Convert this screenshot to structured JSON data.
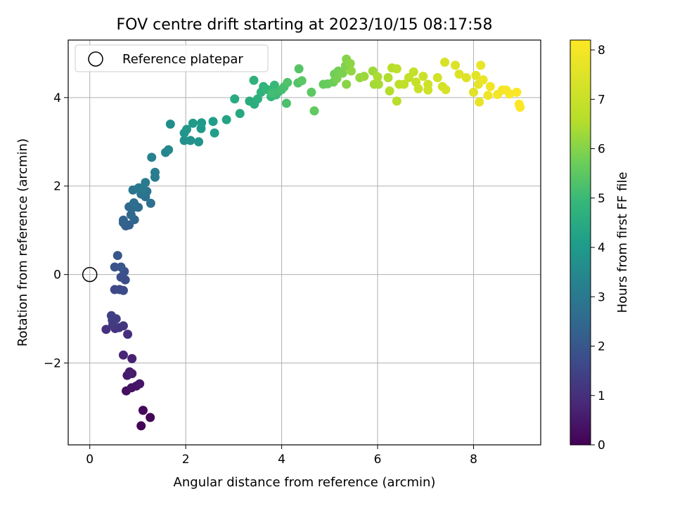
{
  "chart_data": {
    "type": "scatter",
    "title": "FOV centre drift starting at 2023/10/15 08:17:58",
    "xlabel": "Angular distance from reference (arcmin)",
    "ylabel": "Rotation from reference (arcmin)",
    "xlim": [
      -0.45,
      9.4
    ],
    "ylim": [
      -3.85,
      5.3
    ],
    "xticks": [
      0,
      2,
      4,
      6,
      8
    ],
    "yticks": [
      -2,
      0,
      2,
      4
    ],
    "xtick_labels": [
      "0",
      "2",
      "4",
      "6",
      "8"
    ],
    "ytick_labels": [
      "−2",
      "0",
      "2",
      "4"
    ],
    "grid": true,
    "legend": {
      "position": "top-left",
      "entries": [
        "Reference platepar"
      ]
    },
    "reference_point": {
      "name": "Reference platepar",
      "x": 0,
      "y": 0
    },
    "colorbar": {
      "label": "Hours from first FF file",
      "colormap": "viridis",
      "range": [
        0,
        8.2
      ],
      "ticks": [
        0,
        1,
        2,
        3,
        4,
        5,
        6,
        7,
        8
      ],
      "tick_labels": [
        "0",
        "1",
        "2",
        "3",
        "4",
        "5",
        "6",
        "7",
        "8"
      ]
    },
    "points": [
      {
        "x": 1.07,
        "y": -3.42,
        "c": 0.05
      },
      {
        "x": 1.26,
        "y": -3.23,
        "c": 0.1
      },
      {
        "x": 1.11,
        "y": -3.07,
        "c": 0.15
      },
      {
        "x": 0.76,
        "y": -2.63,
        "c": 0.3
      },
      {
        "x": 0.87,
        "y": -2.56,
        "c": 0.35
      },
      {
        "x": 0.97,
        "y": -2.52,
        "c": 0.4
      },
      {
        "x": 1.04,
        "y": -2.47,
        "c": 0.45
      },
      {
        "x": 0.78,
        "y": -2.28,
        "c": 0.5
      },
      {
        "x": 0.88,
        "y": -2.24,
        "c": 0.55
      },
      {
        "x": 0.83,
        "y": -2.2,
        "c": 0.6
      },
      {
        "x": 0.88,
        "y": -1.9,
        "c": 0.7
      },
      {
        "x": 0.7,
        "y": -1.82,
        "c": 0.8
      },
      {
        "x": 0.79,
        "y": -1.35,
        "c": 1.0
      },
      {
        "x": 0.34,
        "y": -1.24,
        "c": 1.05
      },
      {
        "x": 0.53,
        "y": -1.22,
        "c": 1.1
      },
      {
        "x": 0.61,
        "y": -1.2,
        "c": 1.15
      },
      {
        "x": 0.7,
        "y": -1.16,
        "c": 1.2
      },
      {
        "x": 0.48,
        "y": -1.13,
        "c": 1.25
      },
      {
        "x": 0.47,
        "y": -1.03,
        "c": 1.3
      },
      {
        "x": 0.55,
        "y": -1.0,
        "c": 1.35
      },
      {
        "x": 0.45,
        "y": -0.93,
        "c": 1.4
      },
      {
        "x": 0.52,
        "y": -0.34,
        "c": 1.6
      },
      {
        "x": 0.62,
        "y": -0.34,
        "c": 1.65
      },
      {
        "x": 0.7,
        "y": -0.36,
        "c": 1.7
      },
      {
        "x": 0.74,
        "y": -0.12,
        "c": 1.75
      },
      {
        "x": 0.65,
        "y": -0.06,
        "c": 1.8
      },
      {
        "x": 0.72,
        "y": 0.07,
        "c": 1.85
      },
      {
        "x": 0.52,
        "y": 0.17,
        "c": 1.9
      },
      {
        "x": 0.65,
        "y": 0.17,
        "c": 1.95
      },
      {
        "x": 0.58,
        "y": 0.43,
        "c": 2.0
      },
      {
        "x": 0.75,
        "y": 1.1,
        "c": 2.2
      },
      {
        "x": 0.82,
        "y": 1.12,
        "c": 2.25
      },
      {
        "x": 0.7,
        "y": 1.17,
        "c": 2.3
      },
      {
        "x": 0.7,
        "y": 1.23,
        "c": 2.35
      },
      {
        "x": 0.93,
        "y": 1.24,
        "c": 2.4
      },
      {
        "x": 0.86,
        "y": 1.35,
        "c": 2.45
      },
      {
        "x": 0.82,
        "y": 1.53,
        "c": 2.5
      },
      {
        "x": 0.92,
        "y": 1.52,
        "c": 2.55
      },
      {
        "x": 1.01,
        "y": 1.52,
        "c": 2.6
      },
      {
        "x": 0.92,
        "y": 1.62,
        "c": 2.65
      },
      {
        "x": 1.27,
        "y": 1.61,
        "c": 2.7
      },
      {
        "x": 1.16,
        "y": 1.76,
        "c": 2.75
      },
      {
        "x": 1.07,
        "y": 1.82,
        "c": 2.8
      },
      {
        "x": 1.19,
        "y": 1.88,
        "c": 2.85
      },
      {
        "x": 0.9,
        "y": 1.91,
        "c": 2.9
      },
      {
        "x": 1.02,
        "y": 1.96,
        "c": 2.95
      },
      {
        "x": 1.1,
        "y": 1.94,
        "c": 3.0
      },
      {
        "x": 1.16,
        "y": 2.08,
        "c": 3.05
      },
      {
        "x": 1.36,
        "y": 2.2,
        "c": 3.1
      },
      {
        "x": 1.36,
        "y": 2.31,
        "c": 3.15
      },
      {
        "x": 1.29,
        "y": 2.65,
        "c": 3.25
      },
      {
        "x": 1.58,
        "y": 2.76,
        "c": 3.4
      },
      {
        "x": 1.64,
        "y": 2.82,
        "c": 3.45
      },
      {
        "x": 1.68,
        "y": 3.4,
        "c": 3.6
      },
      {
        "x": 1.97,
        "y": 3.03,
        "c": 3.7
      },
      {
        "x": 2.1,
        "y": 3.03,
        "c": 3.75
      },
      {
        "x": 2.27,
        "y": 3.0,
        "c": 3.8
      },
      {
        "x": 1.97,
        "y": 3.2,
        "c": 3.85
      },
      {
        "x": 2.02,
        "y": 3.28,
        "c": 3.9
      },
      {
        "x": 2.32,
        "y": 3.3,
        "c": 3.95
      },
      {
        "x": 2.15,
        "y": 3.42,
        "c": 4.0
      },
      {
        "x": 2.33,
        "y": 3.43,
        "c": 4.05
      },
      {
        "x": 2.57,
        "y": 3.46,
        "c": 4.1
      },
      {
        "x": 2.6,
        "y": 3.2,
        "c": 4.15
      },
      {
        "x": 2.85,
        "y": 3.5,
        "c": 4.3
      },
      {
        "x": 3.13,
        "y": 3.64,
        "c": 4.4
      },
      {
        "x": 3.02,
        "y": 3.97,
        "c": 4.5
      },
      {
        "x": 3.33,
        "y": 3.92,
        "c": 4.55
      },
      {
        "x": 3.43,
        "y": 3.85,
        "c": 4.6
      },
      {
        "x": 3.5,
        "y": 3.97,
        "c": 4.65
      },
      {
        "x": 3.42,
        "y": 4.39,
        "c": 4.7
      },
      {
        "x": 3.57,
        "y": 4.12,
        "c": 4.75
      },
      {
        "x": 3.62,
        "y": 4.25,
        "c": 4.8
      },
      {
        "x": 3.7,
        "y": 4.18,
        "c": 4.85
      },
      {
        "x": 3.78,
        "y": 4.02,
        "c": 4.9
      },
      {
        "x": 3.85,
        "y": 4.28,
        "c": 4.95
      },
      {
        "x": 3.88,
        "y": 4.06,
        "c": 5.0
      },
      {
        "x": 3.93,
        "y": 4.13,
        "c": 5.05
      },
      {
        "x": 3.8,
        "y": 4.1,
        "c": 5.1
      },
      {
        "x": 4.0,
        "y": 4.18,
        "c": 5.15
      },
      {
        "x": 4.05,
        "y": 4.24,
        "c": 5.2
      },
      {
        "x": 4.1,
        "y": 3.87,
        "c": 5.25
      },
      {
        "x": 4.12,
        "y": 4.34,
        "c": 5.3
      },
      {
        "x": 4.34,
        "y": 4.33,
        "c": 5.35
      },
      {
        "x": 4.36,
        "y": 4.65,
        "c": 5.4
      },
      {
        "x": 4.42,
        "y": 4.38,
        "c": 5.45
      },
      {
        "x": 4.62,
        "y": 4.12,
        "c": 5.5
      },
      {
        "x": 4.68,
        "y": 3.7,
        "c": 5.55
      },
      {
        "x": 4.87,
        "y": 4.3,
        "c": 5.6
      },
      {
        "x": 4.96,
        "y": 4.31,
        "c": 5.65
      },
      {
        "x": 5.08,
        "y": 4.35,
        "c": 5.7
      },
      {
        "x": 5.1,
        "y": 4.53,
        "c": 5.75
      },
      {
        "x": 5.18,
        "y": 4.6,
        "c": 5.8
      },
      {
        "x": 5.15,
        "y": 4.43,
        "c": 5.85
      },
      {
        "x": 5.27,
        "y": 4.55,
        "c": 5.9
      },
      {
        "x": 5.33,
        "y": 4.72,
        "c": 5.95
      },
      {
        "x": 5.35,
        "y": 4.87,
        "c": 6.0
      },
      {
        "x": 5.35,
        "y": 4.3,
        "c": 6.05
      },
      {
        "x": 5.43,
        "y": 4.77,
        "c": 6.1
      },
      {
        "x": 5.45,
        "y": 4.6,
        "c": 6.15
      },
      {
        "x": 5.63,
        "y": 4.45,
        "c": 6.2
      },
      {
        "x": 5.72,
        "y": 4.48,
        "c": 6.25
      },
      {
        "x": 5.9,
        "y": 4.6,
        "c": 6.3
      },
      {
        "x": 5.93,
        "y": 4.3,
        "c": 6.35
      },
      {
        "x": 6.02,
        "y": 4.3,
        "c": 6.4
      },
      {
        "x": 6.0,
        "y": 4.47,
        "c": 6.45
      },
      {
        "x": 6.22,
        "y": 4.45,
        "c": 6.5
      },
      {
        "x": 6.25,
        "y": 4.15,
        "c": 6.55
      },
      {
        "x": 6.3,
        "y": 4.67,
        "c": 6.6
      },
      {
        "x": 6.4,
        "y": 3.92,
        "c": 6.65
      },
      {
        "x": 6.4,
        "y": 4.65,
        "c": 6.7
      },
      {
        "x": 6.45,
        "y": 4.3,
        "c": 6.75
      },
      {
        "x": 6.55,
        "y": 4.3,
        "c": 6.8
      },
      {
        "x": 6.65,
        "y": 4.45,
        "c": 6.85
      },
      {
        "x": 6.75,
        "y": 4.58,
        "c": 6.9
      },
      {
        "x": 6.8,
        "y": 4.35,
        "c": 6.95
      },
      {
        "x": 6.85,
        "y": 4.2,
        "c": 7.0
      },
      {
        "x": 6.95,
        "y": 4.48,
        "c": 7.05
      },
      {
        "x": 7.05,
        "y": 4.3,
        "c": 7.1
      },
      {
        "x": 7.05,
        "y": 4.17,
        "c": 7.15
      },
      {
        "x": 7.25,
        "y": 4.45,
        "c": 7.2
      },
      {
        "x": 7.35,
        "y": 4.25,
        "c": 7.25
      },
      {
        "x": 7.42,
        "y": 4.18,
        "c": 7.3
      },
      {
        "x": 7.4,
        "y": 4.8,
        "c": 7.35
      },
      {
        "x": 7.62,
        "y": 4.73,
        "c": 7.4
      },
      {
        "x": 7.7,
        "y": 4.53,
        "c": 7.45
      },
      {
        "x": 7.85,
        "y": 4.45,
        "c": 7.5
      },
      {
        "x": 8.0,
        "y": 4.12,
        "c": 7.55
      },
      {
        "x": 8.05,
        "y": 4.5,
        "c": 7.6
      },
      {
        "x": 8.1,
        "y": 4.3,
        "c": 7.65
      },
      {
        "x": 8.12,
        "y": 3.9,
        "c": 7.7
      },
      {
        "x": 8.15,
        "y": 4.73,
        "c": 7.75
      },
      {
        "x": 8.2,
        "y": 4.4,
        "c": 7.8
      },
      {
        "x": 8.3,
        "y": 4.05,
        "c": 7.85
      },
      {
        "x": 8.35,
        "y": 4.25,
        "c": 7.9
      },
      {
        "x": 8.5,
        "y": 4.07,
        "c": 7.95
      },
      {
        "x": 8.6,
        "y": 4.17,
        "c": 8.0
      },
      {
        "x": 8.68,
        "y": 4.17,
        "c": 8.05
      },
      {
        "x": 8.75,
        "y": 4.08,
        "c": 8.1
      },
      {
        "x": 8.9,
        "y": 4.12,
        "c": 8.15
      },
      {
        "x": 8.95,
        "y": 3.85,
        "c": 8.18
      },
      {
        "x": 8.97,
        "y": 3.78,
        "c": 8.2
      }
    ]
  }
}
